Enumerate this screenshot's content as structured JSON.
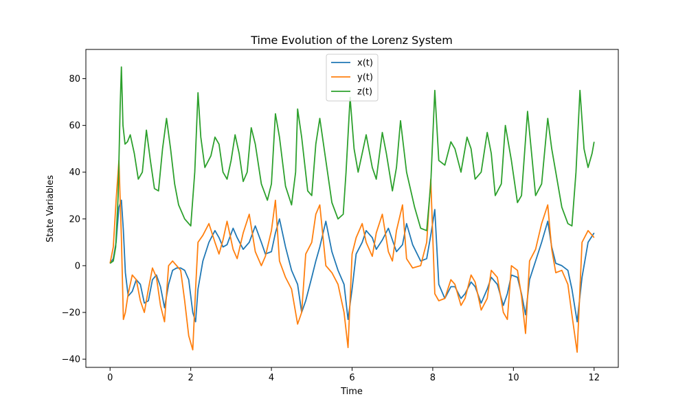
{
  "colors": {
    "x": "#1f77b4",
    "y": "#ff7f0e",
    "z": "#2ca02c"
  },
  "chart_data": {
    "type": "line",
    "title": "Time Evolution of the Lorenz System",
    "xlabel": "Time",
    "ylabel": "State Variables",
    "xlim": [
      -0.6,
      12.6
    ],
    "ylim": [
      -43.5,
      92.5
    ],
    "xticks": [
      0,
      2,
      4,
      6,
      8,
      10,
      12
    ],
    "xtick_labels": [
      "0",
      "2",
      "4",
      "6",
      "8",
      "10",
      "12"
    ],
    "yticks": [
      -40,
      -20,
      0,
      20,
      40,
      60,
      80
    ],
    "ytick_labels": [
      "−40",
      "−20",
      "0",
      "20",
      "40",
      "60",
      "80"
    ],
    "legend_position": "upper center",
    "grid": false,
    "series": [
      {
        "name": "x(t)",
        "x": [
          0,
          0.08,
          0.15,
          0.22,
          0.28,
          0.33,
          0.38,
          0.45,
          0.55,
          0.65,
          0.75,
          0.85,
          0.95,
          1.05,
          1.15,
          1.25,
          1.35,
          1.45,
          1.55,
          1.65,
          1.75,
          1.85,
          1.95,
          2.05,
          2.12,
          2.18,
          2.3,
          2.45,
          2.6,
          2.7,
          2.8,
          2.9,
          3.05,
          3.15,
          3.3,
          3.45,
          3.6,
          3.75,
          3.85,
          4.0,
          4.1,
          4.2,
          4.35,
          4.5,
          4.65,
          4.75,
          4.85,
          5.0,
          5.1,
          5.2,
          5.35,
          5.5,
          5.65,
          5.8,
          5.9,
          6.0,
          6.1,
          6.25,
          6.35,
          6.5,
          6.6,
          6.75,
          6.9,
          7.0,
          7.1,
          7.25,
          7.35,
          7.5,
          7.7,
          7.85,
          7.95,
          8.05,
          8.15,
          8.3,
          8.45,
          8.55,
          8.7,
          8.8,
          8.95,
          9.05,
          9.2,
          9.35,
          9.45,
          9.6,
          9.75,
          9.85,
          9.95,
          10.1,
          10.2,
          10.3,
          10.4,
          10.55,
          10.7,
          10.85,
          10.95,
          11.05,
          11.2,
          11.35,
          11.45,
          11.58,
          11.7,
          11.85,
          12.0
        ],
        "y": [
          1,
          3,
          10,
          25,
          28,
          15,
          -3,
          -13,
          -11,
          -6,
          -8,
          -16,
          -15,
          -6,
          -4,
          -9,
          -18,
          -8,
          -2,
          -1,
          -1,
          -2,
          -6,
          -20,
          -24,
          -10,
          2,
          10,
          15,
          12,
          8,
          9,
          16,
          12,
          7,
          10,
          17,
          10,
          5,
          6,
          14,
          20,
          8,
          -2,
          -8,
          -20,
          -15,
          -5,
          2,
          8,
          19,
          6,
          -2,
          -8,
          -23,
          -10,
          5,
          10,
          15,
          12,
          7,
          11,
          16,
          11,
          6,
          9,
          18,
          9,
          2,
          3,
          13,
          24,
          -8,
          -14,
          -9,
          -9,
          -14,
          -12,
          -7,
          -9,
          -16,
          -10,
          -5,
          -8,
          -17,
          -12,
          -4,
          -5,
          -12,
          -21,
          -6,
          2,
          10,
          19,
          8,
          1,
          0,
          -2,
          -10,
          -24,
          -5,
          10,
          14
        ]
      },
      {
        "name": "y(t)",
        "x": [
          0,
          0.08,
          0.15,
          0.22,
          0.28,
          0.33,
          0.38,
          0.45,
          0.55,
          0.65,
          0.75,
          0.85,
          0.95,
          1.05,
          1.15,
          1.25,
          1.35,
          1.45,
          1.55,
          1.65,
          1.75,
          1.85,
          1.95,
          2.05,
          2.12,
          2.18,
          2.3,
          2.45,
          2.6,
          2.7,
          2.8,
          2.9,
          3.05,
          3.15,
          3.3,
          3.45,
          3.6,
          3.75,
          3.85,
          4.0,
          4.1,
          4.2,
          4.35,
          4.5,
          4.65,
          4.75,
          4.85,
          5.0,
          5.1,
          5.2,
          5.35,
          5.5,
          5.65,
          5.8,
          5.9,
          6.0,
          6.1,
          6.25,
          6.35,
          6.5,
          6.6,
          6.75,
          6.9,
          7.0,
          7.1,
          7.25,
          7.35,
          7.5,
          7.7,
          7.85,
          7.95,
          8.05,
          8.15,
          8.3,
          8.45,
          8.55,
          8.7,
          8.8,
          8.95,
          9.05,
          9.2,
          9.35,
          9.45,
          9.6,
          9.75,
          9.85,
          9.95,
          10.1,
          10.2,
          10.3,
          10.4,
          10.55,
          10.7,
          10.85,
          10.95,
          11.05,
          11.2,
          11.35,
          11.45,
          11.58,
          11.7,
          11.85,
          12.0
        ],
        "y": [
          1,
          8,
          28,
          45,
          12,
          -23,
          -20,
          -12,
          -4,
          -6,
          -15,
          -20,
          -10,
          -1,
          -5,
          -17,
          -24,
          0,
          2,
          0,
          -2,
          -15,
          -30,
          -36,
          -10,
          10,
          13,
          18,
          10,
          5,
          11,
          19,
          7,
          3,
          14,
          22,
          6,
          0,
          4,
          15,
          28,
          2,
          -5,
          -10,
          -25,
          -20,
          5,
          10,
          22,
          26,
          0,
          -3,
          -8,
          -20,
          -35,
          5,
          12,
          18,
          10,
          4,
          14,
          22,
          6,
          2,
          15,
          26,
          3,
          -1,
          0,
          10,
          37,
          -12,
          -15,
          -14,
          -6,
          -8,
          -17,
          -14,
          -4,
          -7,
          -19,
          -14,
          -2,
          -5,
          -20,
          -23,
          0,
          -2,
          -13,
          -29,
          2,
          7,
          18,
          26,
          7,
          -3,
          -2,
          -8,
          -21,
          -37,
          10,
          15,
          12
        ]
      },
      {
        "name": "z(t)",
        "x": [
          0,
          0.08,
          0.14,
          0.2,
          0.25,
          0.28,
          0.32,
          0.37,
          0.43,
          0.5,
          0.6,
          0.7,
          0.8,
          0.9,
          1.0,
          1.1,
          1.2,
          1.3,
          1.4,
          1.5,
          1.6,
          1.7,
          1.85,
          2.0,
          2.1,
          2.18,
          2.25,
          2.35,
          2.5,
          2.6,
          2.7,
          2.8,
          2.9,
          3.0,
          3.1,
          3.2,
          3.3,
          3.4,
          3.5,
          3.6,
          3.75,
          3.9,
          4.0,
          4.1,
          4.2,
          4.35,
          4.5,
          4.6,
          4.65,
          4.75,
          4.9,
          5.0,
          5.1,
          5.2,
          5.35,
          5.5,
          5.65,
          5.78,
          5.85,
          5.95,
          6.05,
          6.15,
          6.25,
          6.35,
          6.5,
          6.6,
          6.75,
          6.85,
          7.0,
          7.1,
          7.2,
          7.35,
          7.55,
          7.7,
          7.85,
          7.95,
          8.05,
          8.15,
          8.3,
          8.45,
          8.55,
          8.7,
          8.85,
          8.95,
          9.05,
          9.2,
          9.35,
          9.45,
          9.55,
          9.7,
          9.8,
          9.95,
          10.1,
          10.2,
          10.35,
          10.45,
          10.55,
          10.7,
          10.85,
          10.95,
          11.05,
          11.2,
          11.35,
          11.45,
          11.55,
          11.65,
          11.75,
          11.85,
          11.95,
          12.0
        ],
        "y": [
          1,
          2,
          8,
          30,
          68,
          85,
          60,
          52,
          53,
          56,
          48,
          37,
          40,
          58,
          45,
          33,
          32,
          50,
          63,
          50,
          35,
          26,
          20,
          17,
          40,
          74,
          55,
          42,
          47,
          55,
          52,
          40,
          37,
          45,
          56,
          48,
          36,
          40,
          59,
          52,
          35,
          28,
          35,
          65,
          55,
          34,
          26,
          40,
          67,
          55,
          32,
          30,
          52,
          63,
          45,
          27,
          20,
          22,
          40,
          72,
          50,
          40,
          48,
          56,
          42,
          37,
          57,
          48,
          32,
          42,
          62,
          40,
          25,
          16,
          15,
          35,
          75,
          45,
          43,
          53,
          50,
          40,
          55,
          50,
          37,
          40,
          57,
          48,
          30,
          35,
          60,
          45,
          27,
          30,
          66,
          48,
          30,
          35,
          63,
          50,
          40,
          25,
          18,
          17,
          40,
          75,
          50,
          42,
          48,
          53
        ]
      }
    ]
  }
}
